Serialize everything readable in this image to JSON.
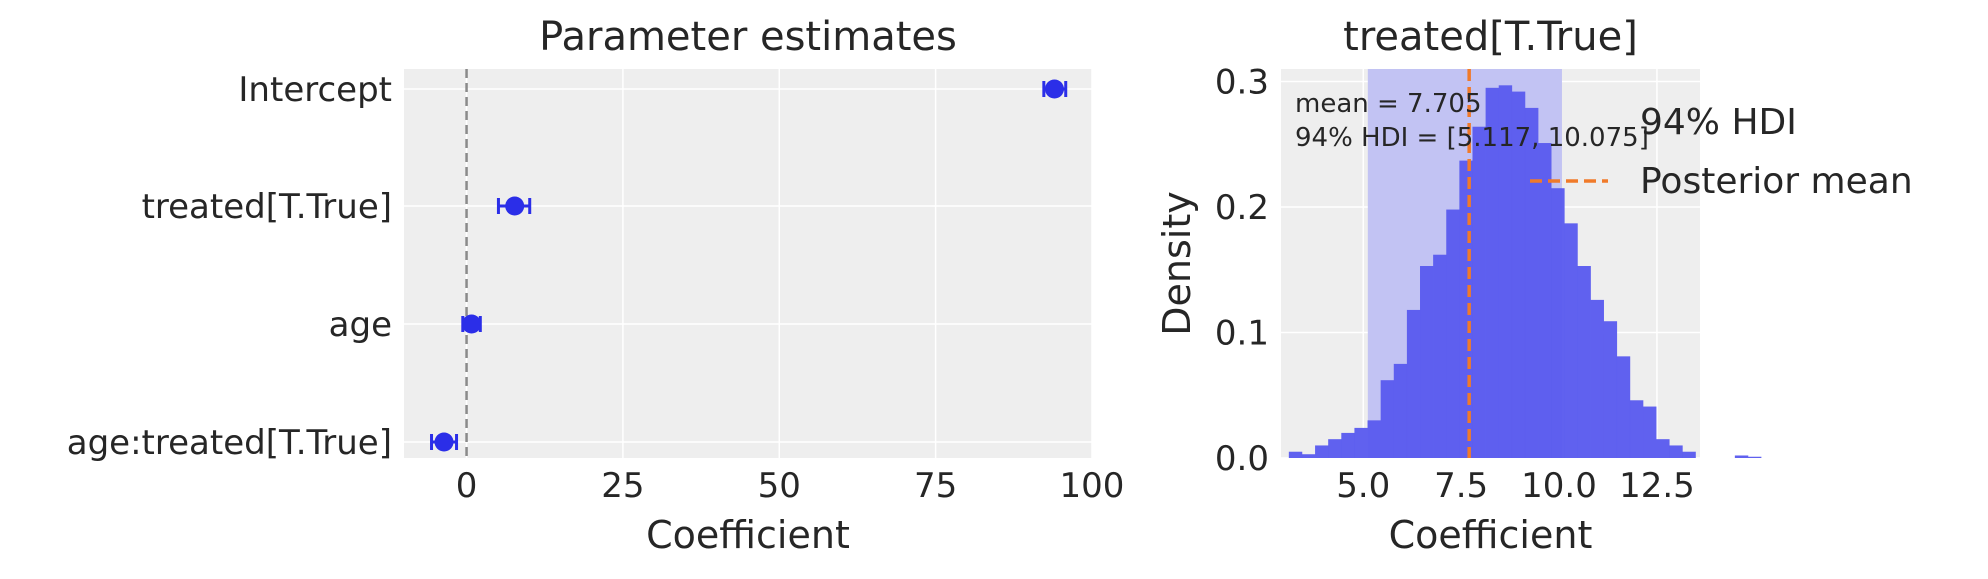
{
  "colors": {
    "background": "#eeeeee",
    "grid": "#ffffff",
    "point": "#2b2ee8",
    "hist": "#5b5cee",
    "hdi": "#c2c3f3",
    "mean": "#f07a2a",
    "zero_line": "#8a8a8a"
  },
  "chart_data": [
    {
      "type": "scatter",
      "title": "Parameter estimates",
      "xlabel": "Coefficient",
      "ylabel": "",
      "xlim": [
        -10,
        100
      ],
      "xticks": [
        0,
        25,
        50,
        75,
        100
      ],
      "xtick_labels": [
        "0",
        "25",
        "50",
        "75",
        "100"
      ],
      "grid": true,
      "reference_line": {
        "x": 0,
        "style": "dashed"
      },
      "categories": [
        "Intercept",
        "treated[T.True]",
        "age",
        "age:treated[T.True]"
      ],
      "estimates": [
        94.0,
        7.7,
        0.8,
        -3.6
      ],
      "hdi_lower": [
        92.3,
        5.1,
        -0.6,
        -5.6
      ],
      "hdi_upper": [
        95.8,
        10.1,
        2.2,
        -1.6
      ]
    },
    {
      "type": "bar",
      "subtype": "histogram",
      "title": "treated[T.True]",
      "xlabel": "Coefficient",
      "ylabel": "Density",
      "xlim": [
        2.9,
        13.6
      ],
      "ylim": [
        0,
        0.31
      ],
      "xticks": [
        5.0,
        7.5,
        10.0,
        12.5
      ],
      "xtick_labels": [
        "5.0",
        "7.5",
        "10.0",
        "12.5"
      ],
      "yticks": [
        0,
        0.1,
        0.2,
        0.3
      ],
      "ytick_labels": [
        "0.0",
        "0.1",
        "0.2",
        "0.3"
      ],
      "grid": true,
      "bin_start": 3.1,
      "bin_width": 0.335,
      "densities": [
        0.005,
        0.003,
        0.01,
        0.015,
        0.02,
        0.024,
        0.03,
        0.062,
        0.075,
        0.118,
        0.153,
        0.162,
        0.198,
        0.237,
        0.264,
        0.295,
        0.297,
        0.292,
        0.279,
        0.251,
        0.215,
        0.187,
        0.153,
        0.126,
        0.109,
        0.081,
        0.046,
        0.041,
        0.015,
        0.01,
        0.005,
        0.0,
        0.0,
        0.0,
        0.002,
        0.001
      ],
      "hdi": [
        5.117,
        10.075
      ],
      "mean": 7.705,
      "annotation": [
        "mean = 7.705",
        "94% HDI = [5.117, 10.075]"
      ],
      "legend": {
        "placement": "top-right",
        "entries": [
          "94% HDI",
          "Posterior mean"
        ]
      }
    }
  ]
}
